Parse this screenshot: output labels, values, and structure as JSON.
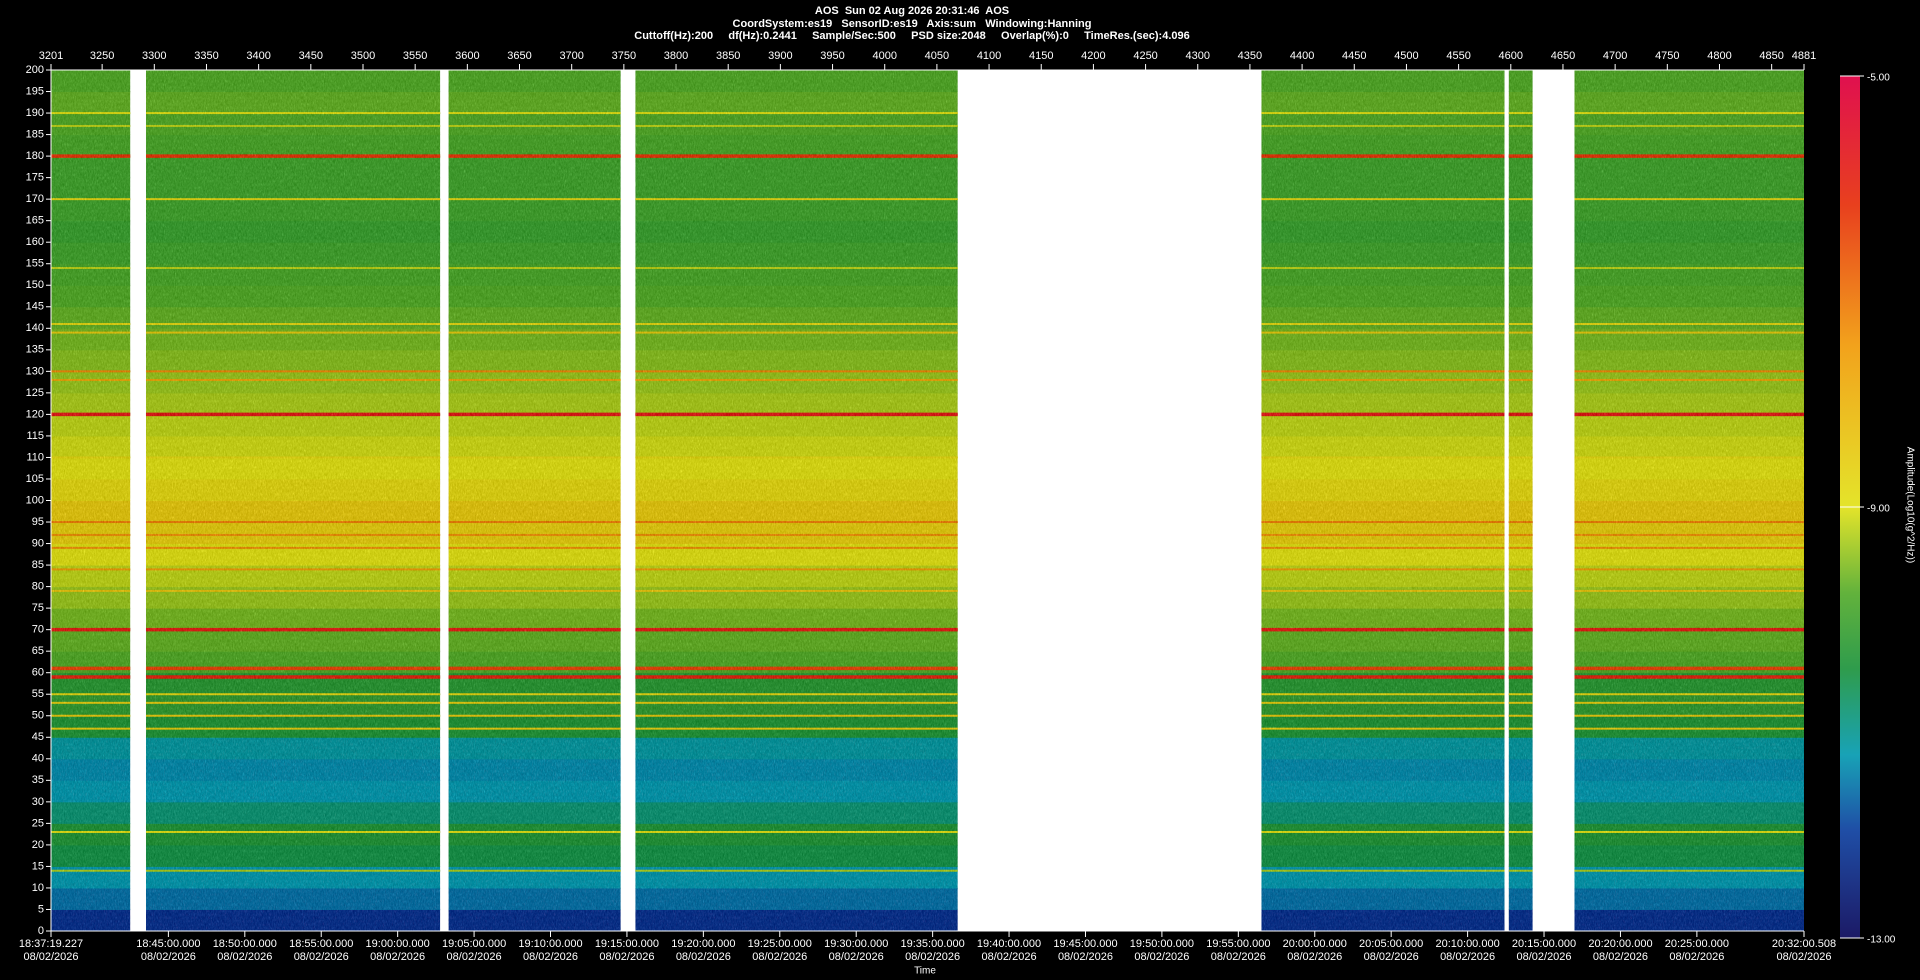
{
  "chart_data": {
    "type": "spectrogram",
    "title": "AOS  Sun 02 Aug 2026 20:31:46  AOS",
    "subtitle": "CoordSystem:es19   SensorID:es19   Axis:sum   Windowing:Hanning",
    "subtitle2": "Cuttoff(Hz):200     df(Hz):0.2441     Sample/Sec:500     PSD size:2048     Overlap(%):0     TimeRes.(sec):4.096",
    "xlabel": "Time",
    "colorbar_label": "Amplitude(Log10(g^2/Hz))",
    "xlim": [
      3201,
      4881
    ],
    "xticks": [
      3201,
      3250,
      3300,
      3350,
      3400,
      3450,
      3500,
      3550,
      3600,
      3650,
      3700,
      3750,
      3800,
      3850,
      3900,
      3950,
      4000,
      4050,
      4100,
      4150,
      4200,
      4250,
      4300,
      4350,
      4400,
      4450,
      4500,
      4550,
      4600,
      4650,
      4700,
      4750,
      4800,
      4850,
      4881
    ],
    "ylim": [
      0,
      200
    ],
    "yticks": [
      0,
      5,
      10,
      15,
      20,
      25,
      30,
      35,
      40,
      45,
      50,
      55,
      60,
      65,
      70,
      75,
      80,
      85,
      90,
      95,
      100,
      105,
      110,
      115,
      120,
      125,
      130,
      135,
      140,
      145,
      150,
      155,
      160,
      165,
      170,
      175,
      180,
      185,
      190,
      195,
      200
    ],
    "time_lim": [
      "18:37:19.227",
      "20:32:00.508"
    ],
    "time_ticks": [
      {
        "time": "18:37:19.227",
        "date": "08/02/2026"
      },
      {
        "time": "18:45:00.000",
        "date": "08/02/2026"
      },
      {
        "time": "18:50:00.000",
        "date": "08/02/2026"
      },
      {
        "time": "18:55:00.000",
        "date": "08/02/2026"
      },
      {
        "time": "19:00:00.000",
        "date": "08/02/2026"
      },
      {
        "time": "19:05:00.000",
        "date": "08/02/2026"
      },
      {
        "time": "19:10:00.000",
        "date": "08/02/2026"
      },
      {
        "time": "19:15:00.000",
        "date": "08/02/2026"
      },
      {
        "time": "19:20:00.000",
        "date": "08/02/2026"
      },
      {
        "time": "19:25:00.000",
        "date": "08/02/2026"
      },
      {
        "time": "19:30:00.000",
        "date": "08/02/2026"
      },
      {
        "time": "19:35:00.000",
        "date": "08/02/2026"
      },
      {
        "time": "19:40:00.000",
        "date": "08/02/2026"
      },
      {
        "time": "19:45:00.000",
        "date": "08/02/2026"
      },
      {
        "time": "19:50:00.000",
        "date": "08/02/2026"
      },
      {
        "time": "19:55:00.000",
        "date": "08/02/2026"
      },
      {
        "time": "20:00:00.000",
        "date": "08/02/2026"
      },
      {
        "time": "20:05:00.000",
        "date": "08/02/2026"
      },
      {
        "time": "20:10:00.000",
        "date": "08/02/2026"
      },
      {
        "time": "20:15:00.000",
        "date": "08/02/2026"
      },
      {
        "time": "20:20:00.000",
        "date": "08/02/2026"
      },
      {
        "time": "20:25:00.000",
        "date": "08/02/2026"
      },
      {
        "time": "20:32:00.508",
        "date": "08/02/2026"
      }
    ],
    "segments": [
      [
        3201,
        3277
      ],
      [
        3292,
        3574
      ],
      [
        3582,
        3747
      ],
      [
        3761,
        4070
      ],
      [
        4361,
        4594
      ],
      [
        4598,
        4621
      ],
      [
        4661,
        4881
      ]
    ],
    "profile": {
      "bins": [
        0,
        5,
        10,
        15,
        20,
        25,
        30,
        35,
        40,
        45,
        50,
        55,
        60,
        65,
        70,
        75,
        80,
        85,
        90,
        95,
        100,
        105,
        110,
        115,
        120,
        125,
        130,
        135,
        140,
        145,
        150,
        155,
        160,
        165,
        170,
        175,
        180,
        185,
        190,
        195,
        200
      ],
      "values": [
        -12.2,
        -11.6,
        -11.3,
        -10.6,
        -10.4,
        -10.9,
        -11.3,
        -11.4,
        -11.2,
        -10.4,
        -10.2,
        -10.3,
        -9.8,
        -9.7,
        -9.6,
        -9.4,
        -9.2,
        -9.0,
        -8.6,
        -8.5,
        -8.8,
        -9.0,
        -9.1,
        -9.2,
        -9.3,
        -9.4,
        -9.5,
        -9.6,
        -9.7,
        -9.8,
        -9.9,
        -10.0,
        -10.1,
        -10.0,
        -10.0,
        -10.0,
        -9.9,
        -9.8,
        -9.7,
        -9.8
      ]
    },
    "lines": [
      {
        "frequency": 190,
        "amplitude": -9.0
      },
      {
        "frequency": 187,
        "amplitude": -9.2
      },
      {
        "frequency": 180,
        "amplitude": -6.3
      },
      {
        "frequency": 170,
        "amplitude": -8.8
      },
      {
        "frequency": 154,
        "amplitude": -9.2
      },
      {
        "frequency": 141,
        "amplitude": -8.8
      },
      {
        "frequency": 139,
        "amplitude": -8.5
      },
      {
        "frequency": 130,
        "amplitude": -7.3
      },
      {
        "frequency": 128,
        "amplitude": -7.8
      },
      {
        "frequency": 120,
        "amplitude": -5.8
      },
      {
        "frequency": 110,
        "amplitude": -8.8
      },
      {
        "frequency": 95,
        "amplitude": -7.2
      },
      {
        "frequency": 92,
        "amplitude": -7.4
      },
      {
        "frequency": 89,
        "amplitude": -7.4
      },
      {
        "frequency": 84,
        "amplitude": -7.6
      },
      {
        "frequency": 79,
        "amplitude": -8.4
      },
      {
        "frequency": 70,
        "amplitude": -5.9
      },
      {
        "frequency": 61,
        "amplitude": -6.5
      },
      {
        "frequency": 59,
        "amplitude": -6.0
      },
      {
        "frequency": 55,
        "amplitude": -8.8
      },
      {
        "frequency": 53,
        "amplitude": -8.6
      },
      {
        "frequency": 50,
        "amplitude": -8.5
      },
      {
        "frequency": 47,
        "amplitude": -8.6
      },
      {
        "frequency": 23,
        "amplitude": -9.0
      },
      {
        "frequency": 14,
        "amplitude": -9.3
      }
    ],
    "colorbar_lim": [
      -13,
      -5
    ],
    "colorbar_ticks": [
      {
        "value": -5,
        "label": "-5.00"
      },
      {
        "value": -9,
        "label": "-9.00"
      },
      {
        "value": -13,
        "label": "-13.00"
      }
    ],
    "colormap": [
      {
        "value": -13,
        "color": "#1c1a66"
      },
      {
        "value": -12,
        "color": "#1f4ea6"
      },
      {
        "value": -11.3,
        "color": "#18a2b6"
      },
      {
        "value": -10.5,
        "color": "#2f9c4c"
      },
      {
        "value": -9.8,
        "color": "#62b23c"
      },
      {
        "value": -9,
        "color": "#e4e42a"
      },
      {
        "value": -7.5,
        "color": "#f2a21c"
      },
      {
        "value": -6.2,
        "color": "#e8401e"
      },
      {
        "value": -5,
        "color": "#e0104f"
      }
    ]
  }
}
